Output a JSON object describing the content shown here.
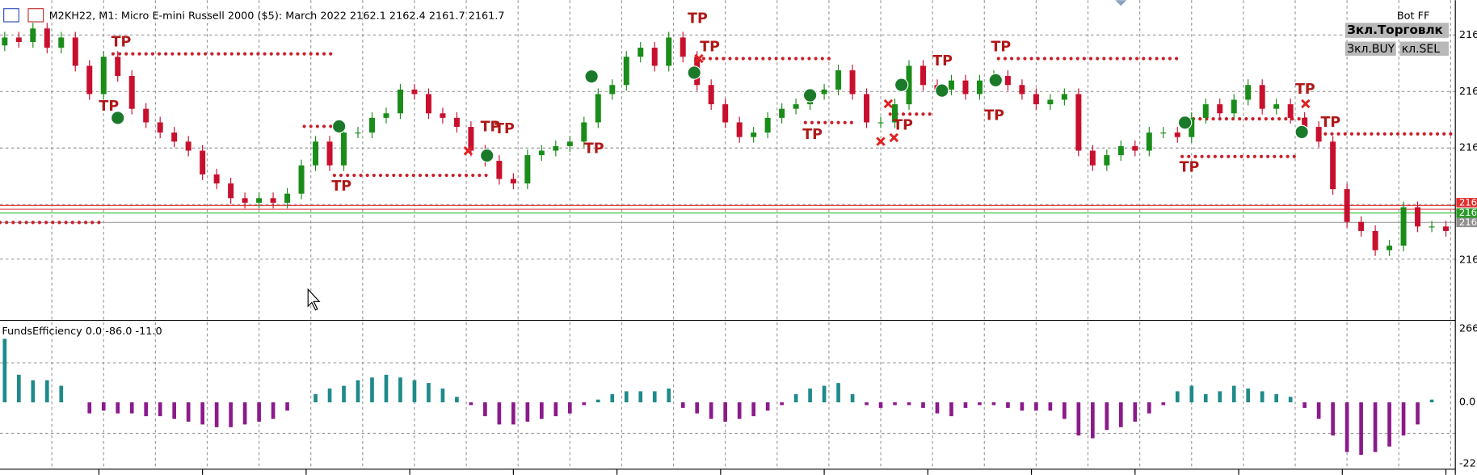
{
  "header": {
    "symbol_line": "M2KH22, M1:  Micro E-mini Russell 2000 ($5): March 2022  2162.1 2162.4 2161.7 2161.7"
  },
  "bot": {
    "name": "Bot FF",
    "trade_button": "Зкл.Торговлк",
    "buy_button": "Зкл.BUY",
    "sell_button": "кл.SEL"
  },
  "price_chart": {
    "ylim": [
      2160.87,
      2163.7
    ],
    "first_open": 2163.3,
    "up_color": "#1a8c1a",
    "down_color": "#c8102e",
    "closes": [
      2163.37,
      2163.33,
      2163.45,
      2163.28,
      2163.37,
      2163.12,
      2162.87,
      2163.2,
      2163.03,
      2162.74,
      2162.62,
      2162.53,
      2162.45,
      2162.37,
      2162.16,
      2162.08,
      2161.95,
      2161.91,
      2161.95,
      2161.91,
      2161.99,
      2162.24,
      2162.45,
      2162.24,
      2162.53,
      2162.53,
      2162.66,
      2162.7,
      2162.91,
      2162.87,
      2162.7,
      2162.66,
      2162.58,
      2162.37,
      2162.28,
      2162.12,
      2162.08,
      2162.33,
      2162.37,
      2162.41,
      2162.45,
      2162.62,
      2162.87,
      2162.95,
      2163.2,
      2163.28,
      2163.12,
      2163.37,
      2163.2,
      2162.95,
      2162.78,
      2162.62,
      2162.49,
      2162.53,
      2162.66,
      2162.74,
      2162.78,
      2162.87,
      2162.91,
      2163.08,
      2162.87,
      2162.62,
      2162.62,
      2162.78,
      2163.12,
      2162.95,
      2162.91,
      2162.99,
      2162.87,
      2162.99,
      2163.03,
      2162.95,
      2162.87,
      2162.78,
      2162.82,
      2162.87,
      2162.37,
      2162.24,
      2162.33,
      2162.41,
      2162.37,
      2162.53,
      2162.53,
      2162.49,
      2162.66,
      2162.78,
      2162.7,
      2162.82,
      2162.95,
      2162.74,
      2162.78,
      2162.66,
      2162.58,
      2162.45,
      2162.03,
      2161.74,
      2161.66,
      2161.49,
      2161.53,
      2161.87,
      2161.7,
      2161.7,
      2161.66
    ],
    "axis_labels": [
      "216",
      "216",
      "216",
      "216"
    ],
    "level_labels": [
      "216",
      "216",
      "216"
    ]
  },
  "tp_labels": [
    "TP",
    "TP",
    "TP",
    "TP",
    "TP",
    "TP",
    "TP",
    "TP",
    "TP",
    "TP",
    "TP",
    "TP",
    "TP",
    "TP",
    "TP",
    "TP"
  ],
  "indicator": {
    "label": "FundsEfficiency 0.0 -86.0 -11.0",
    "ylim": [
      -24.2,
      29
    ],
    "positive_color": "#1f8a8a",
    "negative_color": "#8b1a8b",
    "values": [
      23,
      10,
      8,
      8,
      6,
      0,
      -4,
      -3,
      -4,
      -4,
      -5,
      -5,
      -6,
      -7,
      -8,
      -9,
      -9,
      -8,
      -7,
      -6,
      -3,
      0,
      3,
      5,
      6,
      8,
      9,
      10,
      9,
      8,
      7,
      5,
      2,
      -1,
      -5,
      -8,
      -8,
      -7,
      -6,
      -5,
      -4,
      -1,
      1,
      3,
      4,
      4,
      4,
      5,
      -2,
      -4,
      -6,
      -7,
      -6,
      -5,
      -3,
      -1,
      3,
      5,
      6,
      7,
      3,
      -1,
      -2,
      -1,
      -1,
      -2,
      -4,
      -5,
      -2,
      -1,
      -1,
      -2,
      -3,
      -3,
      -3,
      -6,
      -12,
      -13,
      -10,
      -9,
      -7,
      -4,
      -1,
      4,
      6,
      3,
      4,
      6,
      5,
      4,
      3,
      2,
      -2,
      -6,
      -12,
      -18,
      -19,
      -18,
      -16,
      -12,
      -8,
      1,
      0
    ],
    "axis_labels": [
      "266",
      "0.0",
      "-22"
    ]
  }
}
